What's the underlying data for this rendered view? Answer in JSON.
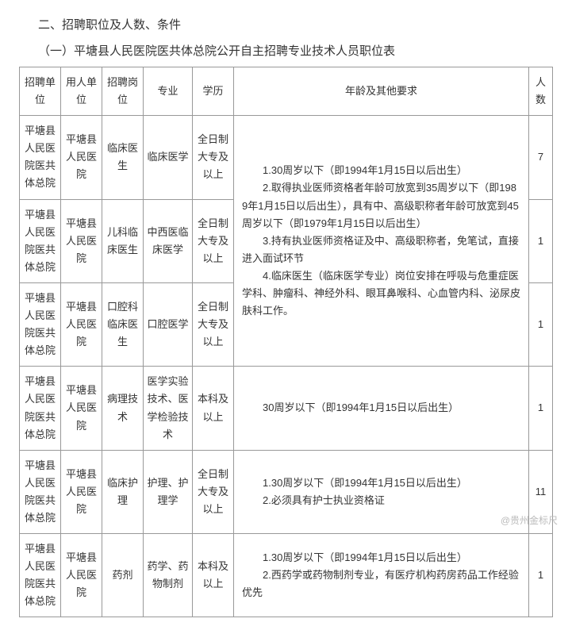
{
  "headings": {
    "section": "二、招聘职位及人数、条件",
    "subsection": "（一）平塘县人民医院医共体总院公开自主招聘专业技术人员职位表"
  },
  "table": {
    "headers": {
      "unit": "招聘单位",
      "employer": "用人单位",
      "post": "招聘岗位",
      "major": "专业",
      "education": "学历",
      "requirements": "年龄及其他要求",
      "count": "人数"
    },
    "rows": [
      {
        "unit": "平塘县人民医院医共体总院",
        "employer": "平塘县人民医院",
        "post": "临床医生",
        "major": "临床医学",
        "education": "全日制大专及以上",
        "count": "7"
      },
      {
        "unit": "平塘县人民医院医共体总院",
        "employer": "平塘县人民医院",
        "post": "儿科临床医生",
        "major": "中西医临床医学",
        "education": "全日制大专及以上",
        "count": "1"
      },
      {
        "unit": "平塘县人民医院医共体总院",
        "employer": "平塘县人民医院",
        "post": "口腔科临床医生",
        "major": "口腔医学",
        "education": "全日制大专及以上",
        "count": "1"
      },
      {
        "unit": "平塘县人民医院医共体总院",
        "employer": "平塘县人民医院",
        "post": "病理技术",
        "major": "医学实验技术、医学检验技术",
        "education": "本科及以上",
        "requirements": "30周岁以下（即1994年1月15日以后出生）",
        "count": "1"
      },
      {
        "unit": "平塘县人民医院医共体总院",
        "employer": "平塘县人民医院",
        "post": "临床护理",
        "major": "护理、护理学",
        "education": "全日制大专及以上",
        "req_lines": [
          "1.30周岁以下（即1994年1月15日以后出生）",
          "2.必须具有护士执业资格证"
        ],
        "count": "11"
      },
      {
        "unit": "平塘县人民医院医共体总院",
        "employer": "平塘县人民医院",
        "post": "药剂",
        "major": "药学、药物制剂",
        "education": "本科及以上",
        "req_lines": [
          "1.30周岁以下（即1994年1月15日以后出生）",
          "2.西药学或药物制剂专业，有医疗机构药房药品工作经验优先"
        ],
        "count": "1"
      }
    ],
    "merged_requirements": [
      "1.30周岁以下（即1994年1月15日以后出生）",
      "2.取得执业医师资格者年龄可放宽到35周岁以下（即1989年1月15日以后出生），具有中、高级职称者年龄可放宽到45周岁以下（即1979年1月15日以后出生）",
      "3.持有执业医师资格证及中、高级职称者，免笔试，直接进入面试环节",
      "4.临床医生（临床医学专业）岗位安排在呼吸与危重症医学科、肿瘤科、神经外科、眼耳鼻喉科、心血管内科、泌尿皮肤科工作。"
    ]
  },
  "watermark": "@贵州金标尺",
  "style": {
    "border_color": "#999999",
    "text_color": "#333333",
    "background": "#ffffff",
    "font_size_body": 13,
    "font_size_heading": 15
  }
}
